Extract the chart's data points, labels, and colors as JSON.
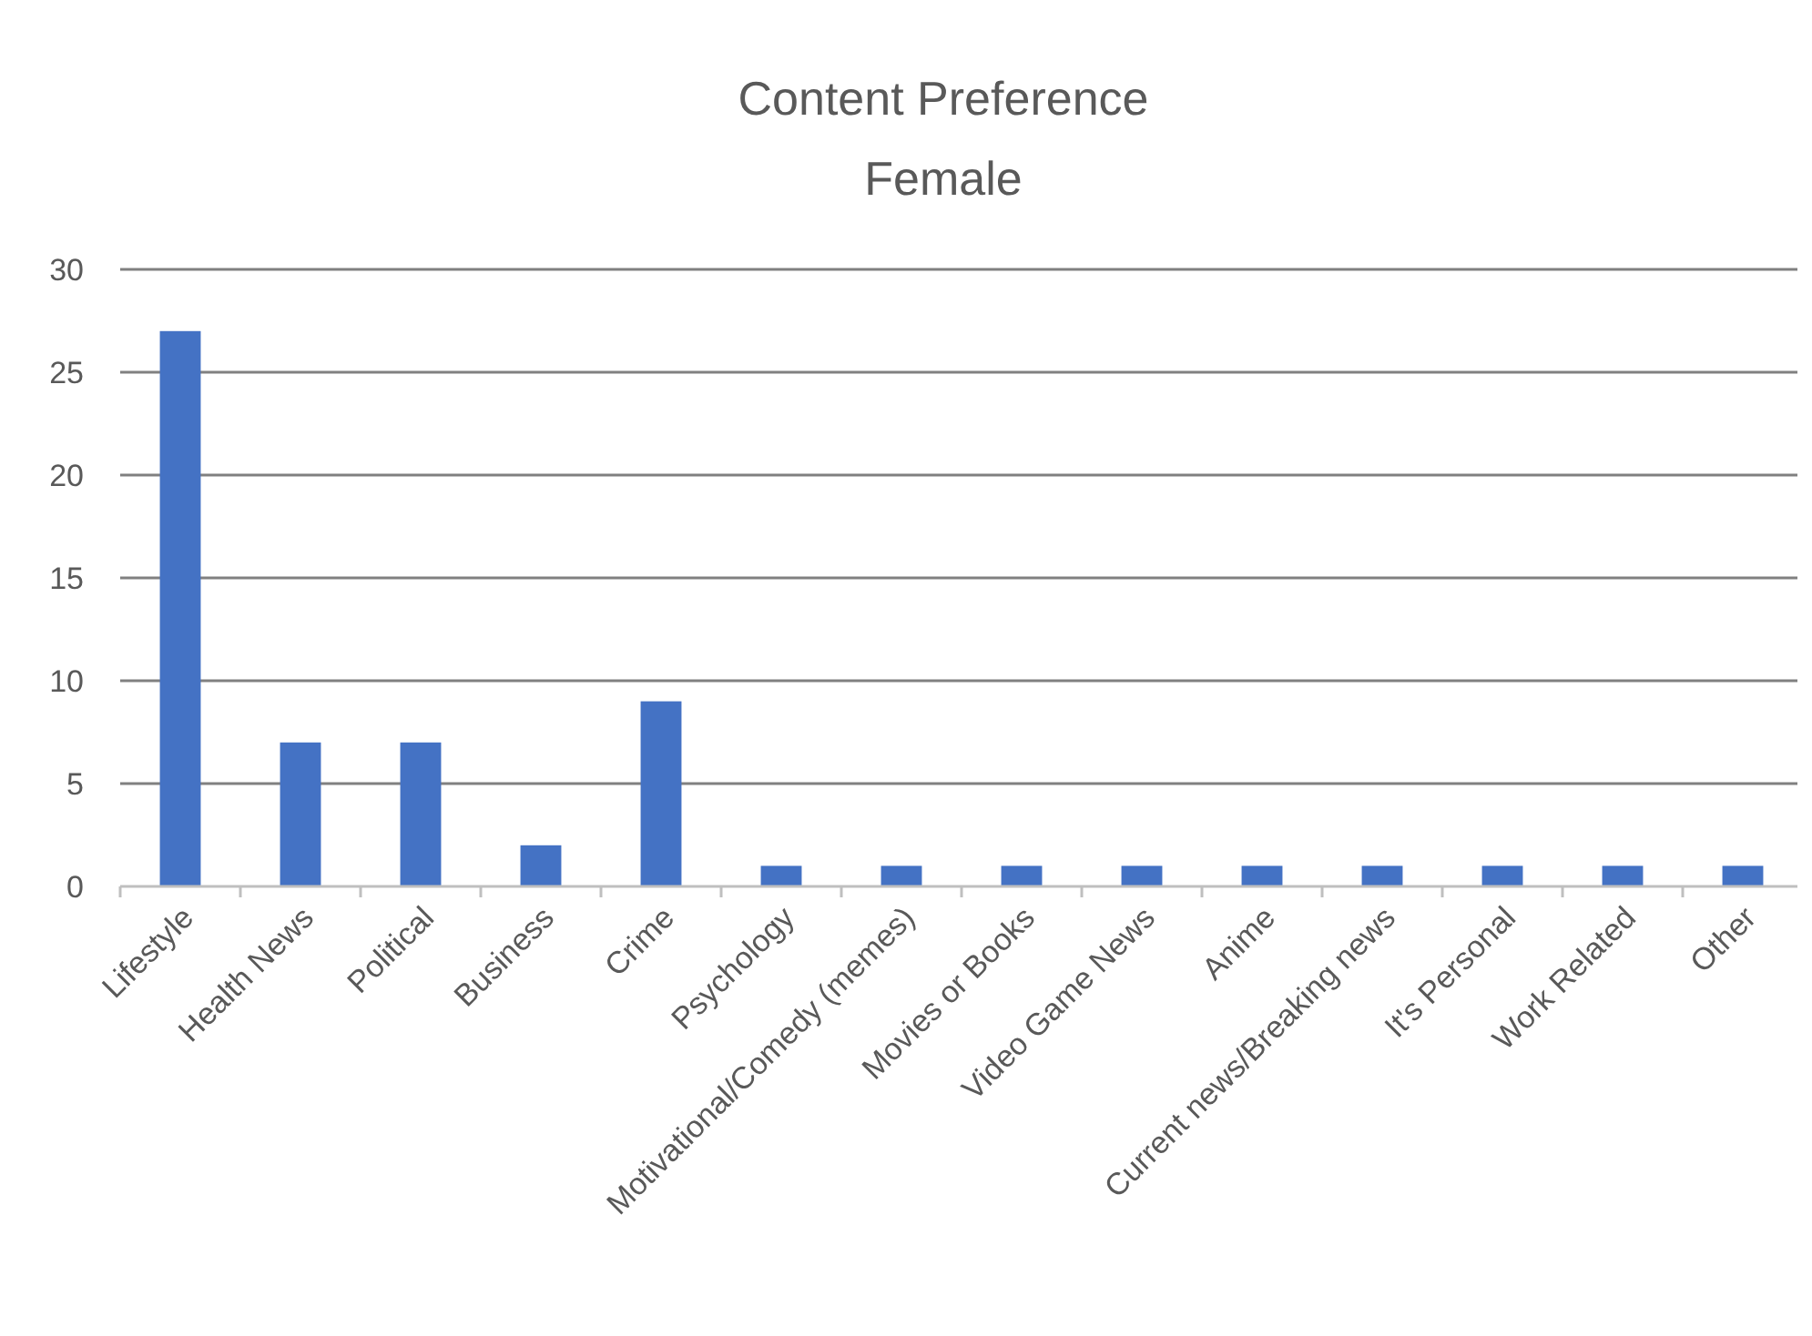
{
  "chart_data": {
    "type": "bar",
    "title": "Content Preference",
    "subtitle": "Female",
    "categories": [
      "Lifestyle",
      "Health News",
      "Political",
      "Business",
      "Crime",
      "Psychology",
      "Motivational/Comedy (memes)",
      "Movies or Books",
      "Video Game News",
      "Anime",
      "Current news/Breaking news",
      "It's Personal",
      "Work Related",
      "Other"
    ],
    "values": [
      27,
      7,
      7,
      2,
      9,
      1,
      1,
      1,
      1,
      1,
      1,
      1,
      1,
      1
    ],
    "color": "#4472c4",
    "ylim": [
      0,
      30
    ],
    "yticks": [
      0,
      5,
      10,
      15,
      20,
      25,
      30
    ],
    "grid": "y"
  }
}
